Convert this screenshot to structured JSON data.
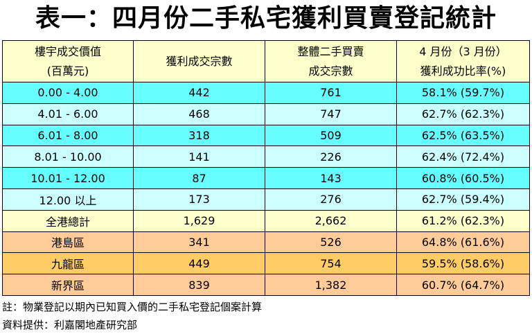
{
  "title": "表一：四月份二手私宅獲利買賣登記統計",
  "header": {
    "col1_line1": "樓宇成交價值",
    "col1_line2": "(百萬元)",
    "col2": "獲利成交宗數",
    "col3_line1": "整體二手買賣",
    "col3_line2": "成交宗數",
    "col4_line1": "4 月份（3 月份）",
    "col4_line2": "獲利成功比率(%)"
  },
  "rows": [
    {
      "range": "0.00 - 4.00",
      "profit": "442",
      "total": "761",
      "ratio": "58.1% (59.7%)"
    },
    {
      "range": "4.01 - 6.00",
      "profit": "468",
      "total": "747",
      "ratio": "62.7% (62.3%)"
    },
    {
      "range": "6.01 - 8.00",
      "profit": "318",
      "total": "509",
      "ratio": "62.5% (63.5%)"
    },
    {
      "range": "8.01 - 10.00",
      "profit": "141",
      "total": "226",
      "ratio": "62.4% (72.4%)"
    },
    {
      "range": "10.01 - 12.00",
      "profit": "87",
      "total": "143",
      "ratio": "60.8% (60.5%)"
    },
    {
      "range": "12.00 以上",
      "profit": "173",
      "total": "276",
      "ratio": "62.7% (59.4%)"
    },
    {
      "range": "全港總計",
      "profit": "1,629",
      "total": "2,662",
      "ratio": "61.2% (62.3%)"
    },
    {
      "range": "港島區",
      "profit": "341",
      "total": "526",
      "ratio": "64.8% (61.6%)"
    },
    {
      "range": "九龍區",
      "profit": "449",
      "total": "754",
      "ratio": "59.5% (58.6%)"
    },
    {
      "range": "新界區",
      "profit": "839",
      "total": "1,382",
      "ratio": "60.7% (64.7%)"
    }
  ],
  "notes": {
    "note": "註：物業登記以期內已知買入價的二手私宅登記個案計算",
    "source": "資料提供：利嘉閣地產研究部"
  },
  "colors": {
    "header_bg": "#ffffcc",
    "cyan": "#66ffff",
    "light_cyan": "#ccffff",
    "cream": "#ffffcc",
    "peach": "#ffcc99",
    "orange": "#ffcc66"
  }
}
